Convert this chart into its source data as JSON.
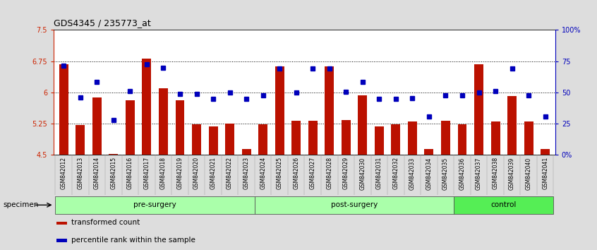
{
  "title": "GDS4345 / 235773_at",
  "samples": [
    "GSM842012",
    "GSM842013",
    "GSM842014",
    "GSM842015",
    "GSM842016",
    "GSM842017",
    "GSM842018",
    "GSM842019",
    "GSM842020",
    "GSM842021",
    "GSM842022",
    "GSM842023",
    "GSM842024",
    "GSM842025",
    "GSM842026",
    "GSM842027",
    "GSM842028",
    "GSM842029",
    "GSM842030",
    "GSM842031",
    "GSM842032",
    "GSM842033",
    "GSM842034",
    "GSM842035",
    "GSM842036",
    "GSM842037",
    "GSM842038",
    "GSM842039",
    "GSM842040",
    "GSM842041"
  ],
  "bar_values": [
    6.68,
    5.22,
    5.88,
    4.52,
    5.82,
    6.82,
    6.1,
    5.82,
    5.24,
    5.18,
    5.26,
    4.64,
    5.24,
    6.62,
    5.32,
    5.32,
    6.62,
    5.34,
    5.94,
    5.18,
    5.24,
    5.3,
    4.64,
    5.32,
    5.24,
    6.68,
    5.3,
    5.92,
    5.3,
    4.64
  ],
  "percentile_values": [
    6.64,
    5.88,
    6.26,
    5.34,
    6.04,
    6.68,
    6.6,
    5.96,
    5.96,
    5.84,
    6.0,
    5.84,
    5.94,
    6.58,
    6.0,
    6.58,
    6.58,
    6.02,
    6.26,
    5.84,
    5.84,
    5.86,
    5.42,
    5.94,
    5.94,
    6.0,
    6.04,
    6.58,
    5.94,
    5.42
  ],
  "groups": [
    {
      "label": "pre-surgery",
      "start": 0,
      "end": 12,
      "color": "#AAFFAA"
    },
    {
      "label": "post-surgery",
      "start": 12,
      "end": 24,
      "color": "#AAFFAA"
    },
    {
      "label": "control",
      "start": 24,
      "end": 30,
      "color": "#55EE55"
    }
  ],
  "bar_color": "#BB1100",
  "dot_color": "#0000BB",
  "bar_bottom": 4.5,
  "ylim_left": [
    4.5,
    7.5
  ],
  "ylim_right": [
    0,
    100
  ],
  "yticks_left": [
    4.5,
    5.25,
    6.0,
    6.75,
    7.5
  ],
  "ytick_labels_left": [
    "4.5",
    "5.25",
    "6",
    "6.75",
    "7.5"
  ],
  "yticks_right": [
    0,
    25,
    50,
    75,
    100
  ],
  "ytick_labels_right": [
    "0%",
    "25",
    "50",
    "75",
    "100%"
  ],
  "hlines": [
    5.25,
    6.0,
    6.75
  ],
  "legend_labels": [
    "transformed count",
    "percentile rank within the sample"
  ],
  "legend_colors": [
    "#BB1100",
    "#0000BB"
  ],
  "specimen_label": "specimen",
  "fig_bg_color": "#DDDDDD",
  "plot_bg_color": "#FFFFFF",
  "xticklabel_area_color": "#BBBBBB"
}
